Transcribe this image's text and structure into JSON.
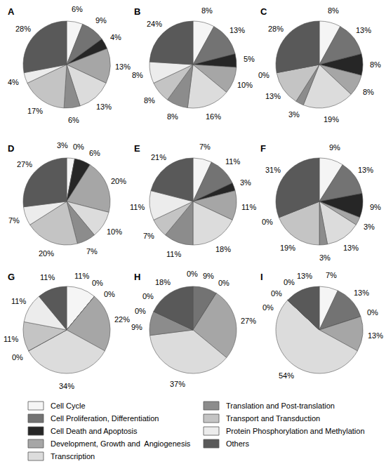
{
  "chart_data": [
    {
      "type": "pie",
      "title": "A",
      "legend": "bottom",
      "data_labels": true,
      "categories": [
        "Cell Cycle",
        "Cell Proliferation, Differentiation",
        "Cell Death and Apoptosis",
        "Development, Growth and  Angiogenesis",
        "Transcription",
        "Translation and Post-translation",
        "Transport and Transduction",
        "Protein Phosphorylation and Methylation",
        "Others"
      ],
      "values": [
        6,
        9,
        4,
        13,
        13,
        6,
        17,
        4,
        28
      ],
      "value_labels": [
        "6%",
        "9%",
        "4%",
        "13%",
        "13%",
        "6%",
        "17%",
        "4%",
        "28%"
      ],
      "colors": [
        "#f5f5f5",
        "#737373",
        "#262626",
        "#a6a6a6",
        "#dcdcdc",
        "#8c8c8c",
        "#c4c4c4",
        "#ececec",
        "#595959"
      ]
    },
    {
      "type": "pie",
      "title": "B",
      "legend": "bottom",
      "data_labels": true,
      "categories": [
        "Cell Cycle",
        "Cell Proliferation, Differentiation",
        "Cell Death and Apoptosis",
        "Development, Growth and  Angiogenesis",
        "Transcription",
        "Translation and Post-translation",
        "Transport and Transduction",
        "Protein Phosphorylation and Methylation",
        "Others"
      ],
      "values": [
        8,
        13,
        5,
        10,
        16,
        8,
        8,
        8,
        24
      ],
      "value_labels": [
        "8%",
        "13%",
        "5%",
        "10%",
        "16%",
        "8%",
        "8%",
        "8%",
        "24%"
      ],
      "colors": [
        "#f5f5f5",
        "#737373",
        "#262626",
        "#a6a6a6",
        "#dcdcdc",
        "#8c8c8c",
        "#c4c4c4",
        "#ececec",
        "#595959"
      ]
    },
    {
      "type": "pie",
      "title": "C",
      "legend": "bottom",
      "data_labels": true,
      "categories": [
        "Cell Cycle",
        "Cell Proliferation, Differentiation",
        "Cell Death and Apoptosis",
        "Development, Growth and  Angiogenesis",
        "Transcription",
        "Translation and Post-translation",
        "Transport and Transduction",
        "Protein Phosphorylation and Methylation",
        "Others"
      ],
      "values": [
        8,
        13,
        8,
        8,
        19,
        3,
        13,
        0,
        28
      ],
      "value_labels": [
        "8%",
        "13%",
        "8%",
        "8%",
        "19%",
        "3%",
        "13%",
        "0%",
        "28%"
      ],
      "colors": [
        "#f5f5f5",
        "#737373",
        "#262626",
        "#a6a6a6",
        "#dcdcdc",
        "#8c8c8c",
        "#c4c4c4",
        "#ececec",
        "#595959"
      ]
    },
    {
      "type": "pie",
      "title": "D",
      "legend": "bottom",
      "data_labels": true,
      "categories": [
        "Cell Cycle",
        "Cell Proliferation, Differentiation",
        "Cell Death and Apoptosis",
        "Development, Growth and  Angiogenesis",
        "Transcription",
        "Translation and Post-translation",
        "Transport and Transduction",
        "Protein Phosphorylation and Methylation",
        "Others"
      ],
      "values": [
        3,
        0,
        6,
        20,
        10,
        7,
        20,
        7,
        27
      ],
      "value_labels": [
        "3%",
        "0%",
        "6%",
        "20%",
        "10%",
        "7%",
        "20%",
        "7%",
        "27%"
      ],
      "colors": [
        "#f5f5f5",
        "#737373",
        "#262626",
        "#a6a6a6",
        "#dcdcdc",
        "#8c8c8c",
        "#c4c4c4",
        "#ececec",
        "#595959"
      ]
    },
    {
      "type": "pie",
      "title": "E",
      "legend": "bottom",
      "data_labels": true,
      "categories": [
        "Cell Cycle",
        "Cell Proliferation, Differentiation",
        "Cell Death and Apoptosis",
        "Development, Growth and  Angiogenesis",
        "Transcription",
        "Translation and Post-translation",
        "Transport and Transduction",
        "Protein Phosphorylation and Methylation",
        "Others"
      ],
      "values": [
        7,
        11,
        3,
        11,
        18,
        11,
        7,
        11,
        21
      ],
      "value_labels": [
        "7%",
        "11%",
        "3%",
        "11%",
        "18%",
        "11%",
        "7%",
        "11%",
        "21%"
      ],
      "colors": [
        "#f5f5f5",
        "#737373",
        "#262626",
        "#a6a6a6",
        "#dcdcdc",
        "#8c8c8c",
        "#c4c4c4",
        "#ececec",
        "#595959"
      ]
    },
    {
      "type": "pie",
      "title": "F",
      "legend": "bottom",
      "data_labels": true,
      "categories": [
        "Cell Cycle",
        "Cell Proliferation, Differentiation",
        "Cell Death and Apoptosis",
        "Development, Growth and  Angiogenesis",
        "Transcription",
        "Translation and Post-translation",
        "Transport and Transduction",
        "Protein Phosphorylation and Methylation",
        "Others"
      ],
      "values": [
        9,
        13,
        9,
        3,
        13,
        3,
        19,
        0,
        31
      ],
      "value_labels": [
        "9%",
        "13%",
        "9%",
        "3%",
        "13%",
        "3%",
        "19%",
        "0%",
        "31%"
      ],
      "colors": [
        "#f5f5f5",
        "#737373",
        "#262626",
        "#a6a6a6",
        "#dcdcdc",
        "#8c8c8c",
        "#c4c4c4",
        "#ececec",
        "#595959"
      ]
    },
    {
      "type": "pie",
      "title": "G",
      "legend": "bottom",
      "data_labels": true,
      "categories": [
        "Cell Cycle",
        "Cell Proliferation, Differentiation",
        "Cell Death and Apoptosis",
        "Development, Growth and  Angiogenesis",
        "Transcription",
        "Translation and Post-translation",
        "Transport and Transduction",
        "Protein Phosphorylation and Methylation",
        "Others"
      ],
      "values": [
        11,
        0,
        0,
        22,
        34,
        0,
        11,
        11,
        11
      ],
      "value_labels": [
        "11%",
        "0%",
        "0%",
        "22%",
        "34%",
        "0%",
        "11%",
        "11%",
        "11%"
      ],
      "colors": [
        "#f5f5f5",
        "#737373",
        "#262626",
        "#a6a6a6",
        "#dcdcdc",
        "#8c8c8c",
        "#c4c4c4",
        "#ececec",
        "#595959"
      ]
    },
    {
      "type": "pie",
      "title": "H",
      "legend": "bottom",
      "data_labels": true,
      "categories": [
        "Cell Cycle",
        "Cell Proliferation, Differentiation",
        "Cell Death and Apoptosis",
        "Development, Growth and  Angiogenesis",
        "Transcription",
        "Translation and Post-translation",
        "Transport and Transduction",
        "Protein Phosphorylation and Methylation",
        "Others"
      ],
      "values": [
        0,
        9,
        0,
        27,
        37,
        9,
        0,
        0,
        18
      ],
      "value_labels": [
        "0%",
        "9%",
        "0%",
        "27%",
        "37%",
        "9%",
        "0%",
        "0%",
        "18%"
      ],
      "colors": [
        "#f5f5f5",
        "#737373",
        "#262626",
        "#a6a6a6",
        "#dcdcdc",
        "#8c8c8c",
        "#c4c4c4",
        "#ececec",
        "#595959"
      ]
    },
    {
      "type": "pie",
      "title": "I",
      "legend": "bottom",
      "data_labels": true,
      "categories": [
        "Cell Cycle",
        "Cell Proliferation, Differentiation",
        "Cell Death and Apoptosis",
        "Development, Growth and  Angiogenesis",
        "Transcription",
        "Translation and Post-translation",
        "Transport and Transduction",
        "Protein Phosphorylation and Methylation",
        "Others"
      ],
      "values": [
        7,
        13,
        0,
        13,
        54,
        0,
        0,
        0,
        13
      ],
      "value_labels": [
        "7%",
        "13%",
        "0%",
        "13%",
        "54%",
        "0%",
        "0%",
        "0%",
        "13%"
      ],
      "colors": [
        "#f5f5f5",
        "#737373",
        "#262626",
        "#a6a6a6",
        "#dcdcdc",
        "#8c8c8c",
        "#c4c4c4",
        "#ececec",
        "#595959"
      ]
    }
  ]
}
